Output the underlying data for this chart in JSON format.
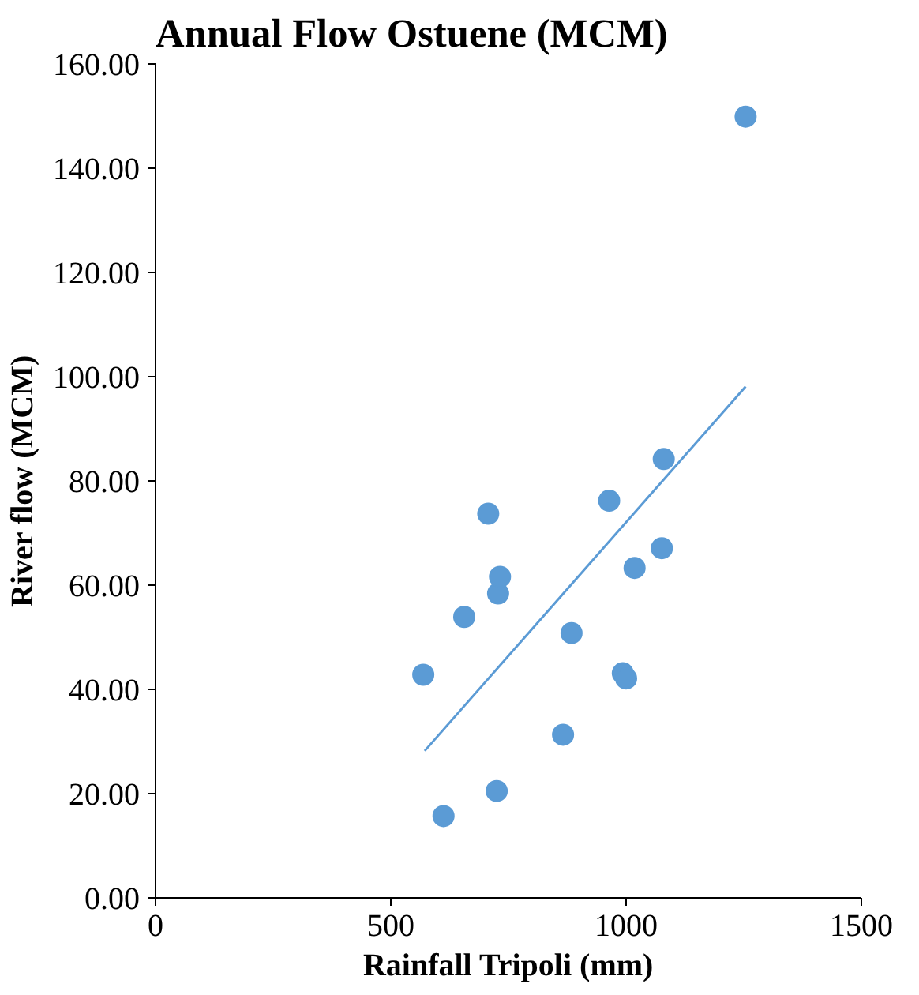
{
  "chart_data": {
    "type": "scatter",
    "title": "Annual Flow Ostuene (MCM)",
    "xlabel": "Rainfall Tripoli (mm)",
    "ylabel": "River flow (MCM)",
    "marker": "circle",
    "grid": false,
    "xlim": [
      0,
      1500
    ],
    "xticks": [
      0,
      500,
      1000,
      1500
    ],
    "ylim": [
      0,
      160
    ],
    "yticks": [
      {
        "value": 0,
        "label": "0.00"
      },
      {
        "value": 20,
        "label": "20.00"
      },
      {
        "value": 40,
        "label": "40.00"
      },
      {
        "value": 60,
        "label": "60.00"
      },
      {
        "value": 80,
        "label": "80.00"
      },
      {
        "value": 100,
        "label": "100.00"
      },
      {
        "value": 120,
        "label": "120.00"
      },
      {
        "value": 140,
        "label": "140.00"
      },
      {
        "value": 160,
        "label": "160.00"
      }
    ],
    "series": [
      {
        "color": "#5b9bd5",
        "x": [
          569,
          612,
          656,
          707,
          725,
          728,
          732,
          866,
          884,
          964,
          993,
          1000,
          1018,
          1076,
          1080,
          1254
        ],
        "values": [
          42.8,
          15.7,
          53.9,
          73.7,
          20.5,
          58.4,
          61.6,
          31.3,
          50.8,
          76.2,
          43.1,
          42.1,
          63.3,
          67.1,
          84.2,
          149.9
        ]
      },
      {
        "type": "line",
        "color": "#5b9bd5",
        "marker": "none",
        "x": [
          572,
          1254
        ],
        "values": [
          28.2,
          98.1
        ]
      }
    ]
  }
}
